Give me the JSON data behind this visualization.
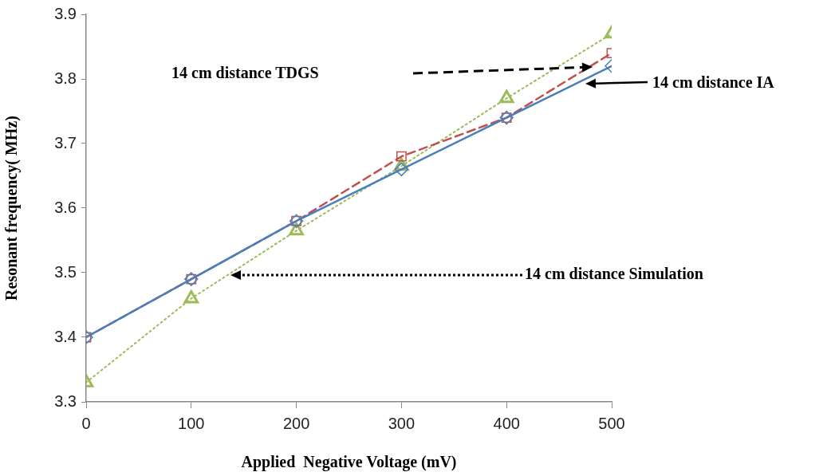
{
  "chart_data": {
    "type": "line",
    "xlabel": "Applied  Negative Voltage (mV)",
    "ylabel": "Resonant frequency( MHz)",
    "x": [
      0,
      100,
      200,
      300,
      400,
      500
    ],
    "series": [
      {
        "color": "#4a7ebb",
        "marker": "diamond",
        "line_style": "solid",
        "values": [
          3.4,
          3.49,
          3.58,
          3.66,
          3.74,
          3.82
        ]
      },
      {
        "color": "#c0504d",
        "marker": "square",
        "line_style": "dashed",
        "values": [
          3.4,
          3.49,
          3.58,
          3.68,
          3.74,
          3.84
        ]
      },
      {
        "color": "#9bbb59",
        "marker": "triangle",
        "line_style": "dotted",
        "values": [
          3.33,
          3.46,
          3.565,
          3.665,
          3.77,
          3.87
        ]
      }
    ],
    "annotations": [
      "14 cm distance IA",
      "14 cm distance TDGS",
      "14 cm distance Simulation"
    ],
    "xlim": [
      0,
      500
    ],
    "xticks": [
      0,
      100,
      200,
      300,
      400,
      500
    ],
    "ylim": [
      3.3,
      3.9
    ],
    "yticks": [
      3.3,
      3.4,
      3.5,
      3.6,
      3.7,
      3.8,
      3.9
    ],
    "grid": false,
    "legend": false
  }
}
